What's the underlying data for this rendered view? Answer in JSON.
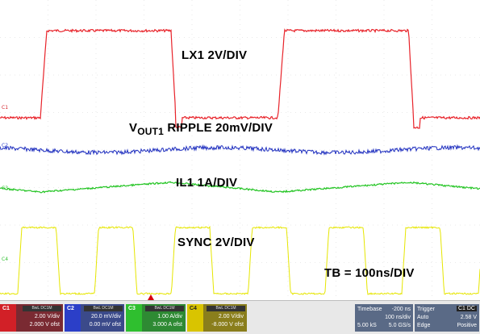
{
  "waveform_labels": {
    "lx1": "LX1 2V/DIV",
    "vout_main": "V",
    "vout_sub": "OUT1",
    "vout_rest": " RIPPLE  20mV/DIV",
    "il1": "IL1 1A/DIV",
    "sync": "SYNC 2V/DIV",
    "timebase_note": "TB = 100ns/DIV"
  },
  "channel_markers": {
    "c1": "C1",
    "c2": "C2",
    "c3": "C3",
    "c4": "C4"
  },
  "channels": [
    {
      "tag": "C1",
      "header": "BwL DC1M",
      "scale": "2.00 V/div",
      "offset": "2.000 V ofst",
      "color": "#d22027"
    },
    {
      "tag": "C2",
      "header": "BwL DC1M",
      "scale": "20.0 mV/div",
      "offset": "0.00 mV ofst",
      "color": "#2b3fc8"
    },
    {
      "tag": "C3",
      "header": "BwL DC1M",
      "scale": "1.00 A/div",
      "offset": "3.000 A ofst",
      "color": "#2fbf2f"
    },
    {
      "tag": "C4",
      "header": "BwL DC1M",
      "scale": "2.00 V/div",
      "offset": "-8.000 V ofst",
      "color": "#d9c400"
    }
  ],
  "timebase": {
    "title": "Timebase",
    "delay": "-200 ns",
    "per_div": "100 ns/div",
    "samples": "5.00 kS",
    "rate": "5.0 GS/s"
  },
  "trigger": {
    "title": "Trigger",
    "source": "C1 DC",
    "mode": "Auto",
    "level": "2.58 V",
    "type": "Edge",
    "slope": "Positive"
  },
  "colors": {
    "lx1": "#e8232a",
    "vout": "#1f2fbf",
    "il1": "#22c422",
    "sync": "#e6e600",
    "grid": "#c8c8c8"
  },
  "trace_params": {
    "period_ns": 495,
    "lx1_high_duty": 0.55,
    "sync_period_ns": 160,
    "sync_duty": 0.5
  }
}
